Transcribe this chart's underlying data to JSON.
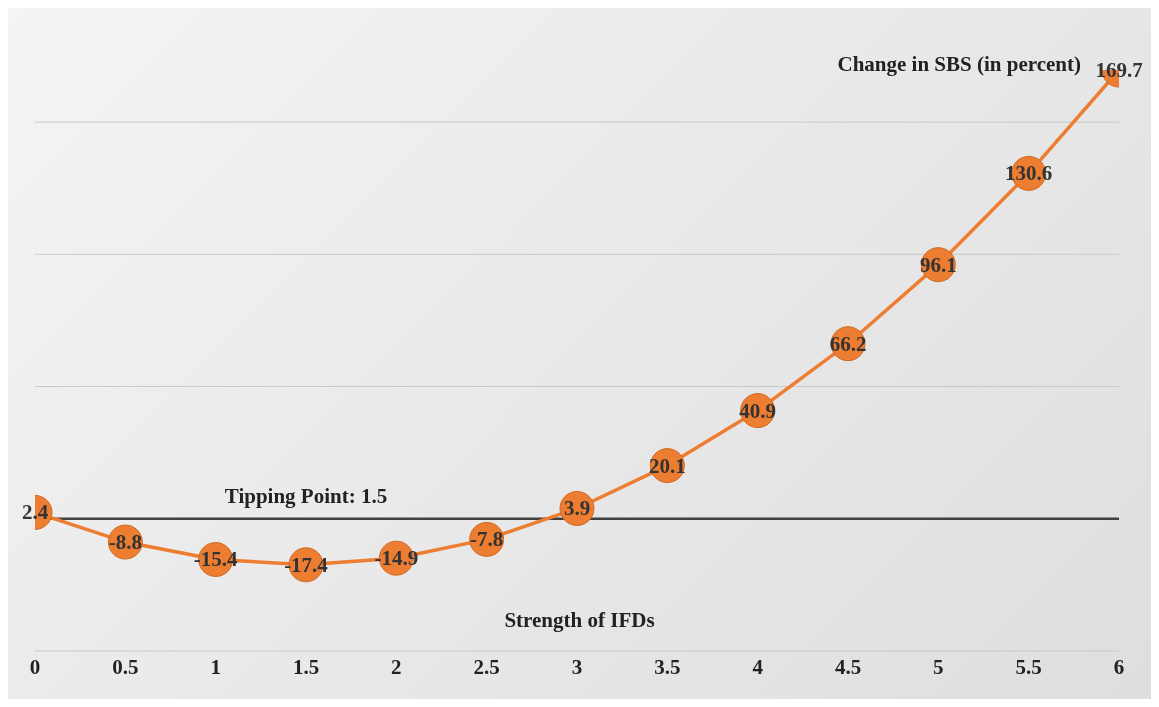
{
  "chart_data": {
    "type": "line",
    "xlabel": "Strength of IFDs",
    "ylabel": "Change in SBS (in percent)",
    "categories": [
      "0",
      "0.5",
      "1",
      "1.5",
      "2",
      "2.5",
      "3",
      "3.5",
      "4",
      "4.5",
      "5",
      "5.5",
      "6"
    ],
    "series": [
      {
        "color": "#ed7d31",
        "values": [
          2.4,
          -8.8,
          -15.4,
          -17.4,
          -14.9,
          -7.8,
          3.9,
          20.1,
          40.9,
          66.2,
          96.1,
          130.6,
          169.7
        ]
      }
    ],
    "yticks": [
      {
        "value": -50,
        "label": null
      },
      {
        "value": 0,
        "label": null
      },
      {
        "value": 50,
        "label": null
      },
      {
        "value": 100,
        "label": null
      },
      {
        "value": 150,
        "label": null
      }
    ],
    "tick_labels": "x",
    "grid": "y",
    "marker": "circle",
    "line_style": "solid",
    "data_labels": true,
    "legend": false,
    "annotations": [
      {
        "text": "Tipping Point: 1.5",
        "x": "1.5",
        "y": 0
      }
    ],
    "ref_lines": [
      {
        "axis": "y",
        "value": 0,
        "color": "#404040"
      }
    ]
  }
}
